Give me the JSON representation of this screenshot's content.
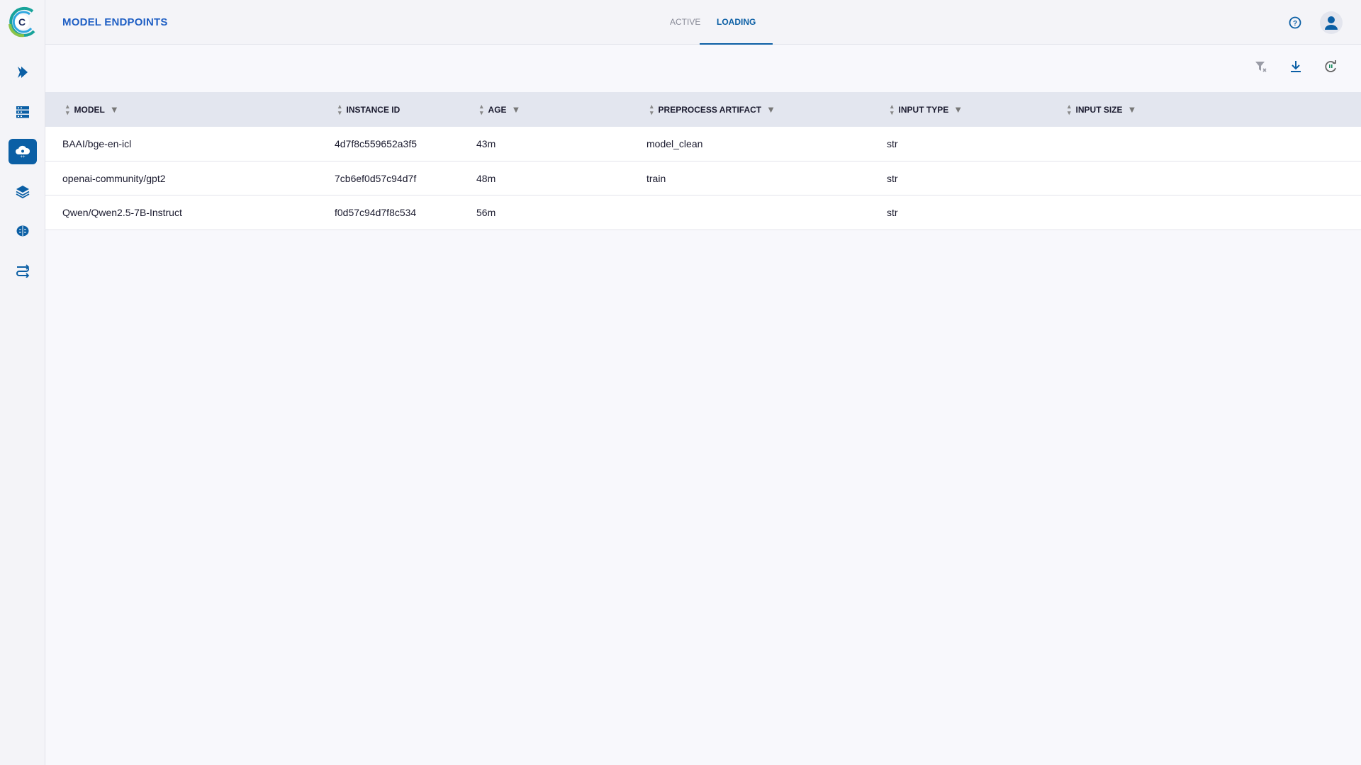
{
  "header": {
    "title": "MODEL ENDPOINTS",
    "tabs": [
      {
        "label": "ACTIVE",
        "selected": false
      },
      {
        "label": "LOADING",
        "selected": true
      }
    ]
  },
  "sidebar": {
    "items": [
      {
        "icon": "pipelines-icon"
      },
      {
        "icon": "datasets-icon"
      },
      {
        "icon": "model-endpoints-icon",
        "active": true
      },
      {
        "icon": "layers-icon"
      },
      {
        "icon": "brain-icon"
      },
      {
        "icon": "workflow-icon"
      }
    ]
  },
  "colors": {
    "accent": "#0b5fa5",
    "title": "#1f5fc4",
    "table_header_bg": "#e3e6ef"
  },
  "table": {
    "columns": [
      {
        "label": "MODEL",
        "filter": true
      },
      {
        "label": "INSTANCE ID",
        "filter": false
      },
      {
        "label": "AGE",
        "filter": true
      },
      {
        "label": "PREPROCESS ARTIFACT",
        "filter": true
      },
      {
        "label": "INPUT TYPE",
        "filter": true
      },
      {
        "label": "INPUT SIZE",
        "filter": true
      }
    ],
    "rows": [
      {
        "model": "BAAI/bge-en-icl",
        "instance_id": "4d7f8c559652a3f5",
        "age": "43m",
        "preprocess": "model_clean",
        "input_type": "str",
        "input_size": ""
      },
      {
        "model": "openai-community/gpt2",
        "instance_id": "7cb6ef0d57c94d7f",
        "age": "48m",
        "preprocess": "train",
        "input_type": "str",
        "input_size": ""
      },
      {
        "model": "Qwen/Qwen2.5-7B-Instruct",
        "instance_id": "f0d57c94d7f8c534",
        "age": "56m",
        "preprocess": "",
        "input_type": "str",
        "input_size": ""
      }
    ]
  }
}
